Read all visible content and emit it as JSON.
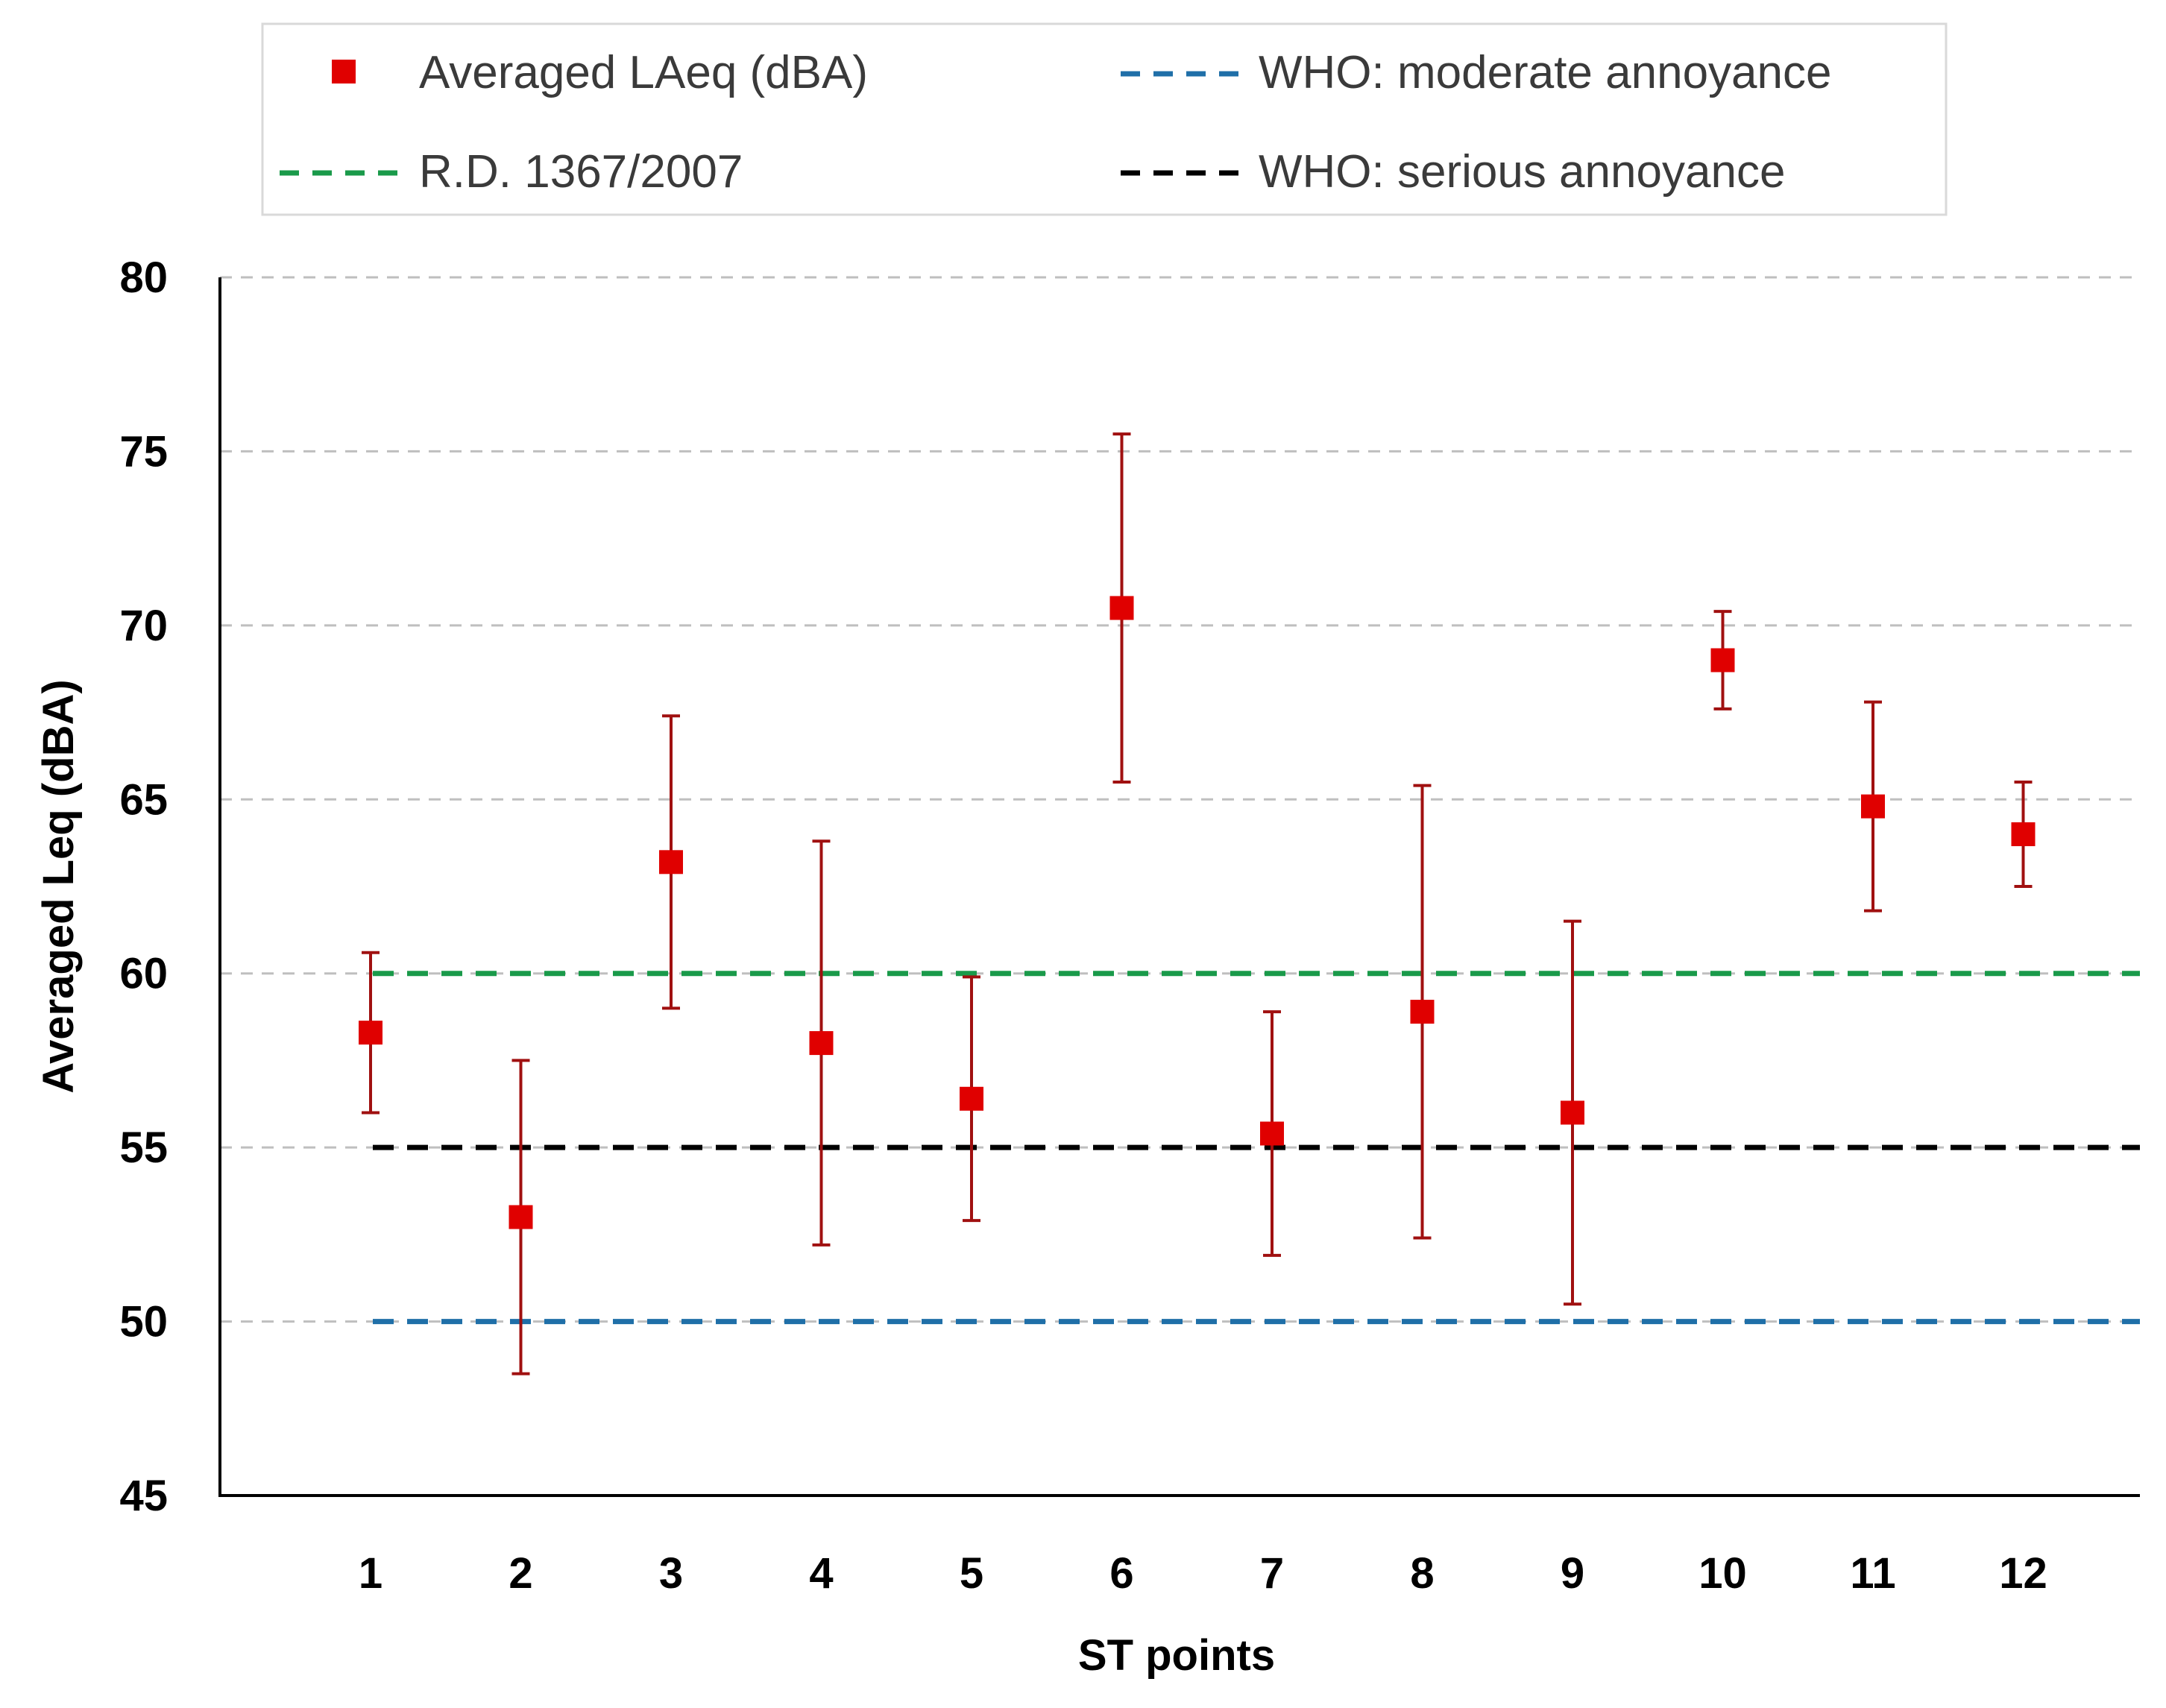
{
  "chart_data": {
    "type": "scatter",
    "title": "",
    "xlabel": "ST points",
    "ylabel": "Averaged Leq (dBA)",
    "categories": [
      "1",
      "2",
      "3",
      "4",
      "5",
      "6",
      "7",
      "8",
      "9",
      "10",
      "11",
      "12"
    ],
    "ylim": [
      45,
      80
    ],
    "yticks": [
      "45",
      "50",
      "55",
      "60",
      "65",
      "70",
      "75",
      "80"
    ],
    "ytick_values": [
      45,
      50,
      55,
      60,
      65,
      70,
      75,
      80
    ],
    "grid": true,
    "legend_position": "top",
    "series": [
      {
        "name": "Averaged LAeq (dBA)",
        "kind": "points_with_error_bars",
        "color": "#e00000",
        "error_color": "#a01010",
        "values": [
          58.3,
          53.0,
          63.2,
          58.0,
          56.4,
          70.5,
          55.4,
          58.9,
          56.0,
          69.0,
          64.8,
          64.0
        ],
        "upper": [
          60.6,
          57.5,
          67.4,
          63.8,
          59.9,
          75.5,
          58.9,
          65.4,
          61.5,
          70.4,
          67.8,
          65.5
        ],
        "lower": [
          56.0,
          48.5,
          59.0,
          52.2,
          52.9,
          65.5,
          51.9,
          52.4,
          50.5,
          67.6,
          61.8,
          62.5
        ]
      }
    ],
    "reference_lines": [
      {
        "name": "WHO: moderate annoyance",
        "value": 50,
        "color": "#1f6fa8"
      },
      {
        "name": "R.D. 1367/2007",
        "value": 60,
        "color": "#1a9a4a"
      },
      {
        "name": "WHO: serious annoyance",
        "value": 55,
        "color": "#000000"
      }
    ],
    "legend": {
      "entries": [
        {
          "label": "Averaged LAeq (dBA)",
          "marker": "square",
          "color": "#e00000"
        },
        {
          "label": "WHO: moderate annoyance",
          "marker": "dashed-line",
          "color": "#1f6fa8"
        },
        {
          "label": "R.D. 1367/2007",
          "marker": "dashed-line",
          "color": "#1a9a4a"
        },
        {
          "label": "WHO: serious annoyance",
          "marker": "dashed-line",
          "color": "#000000"
        }
      ]
    }
  }
}
